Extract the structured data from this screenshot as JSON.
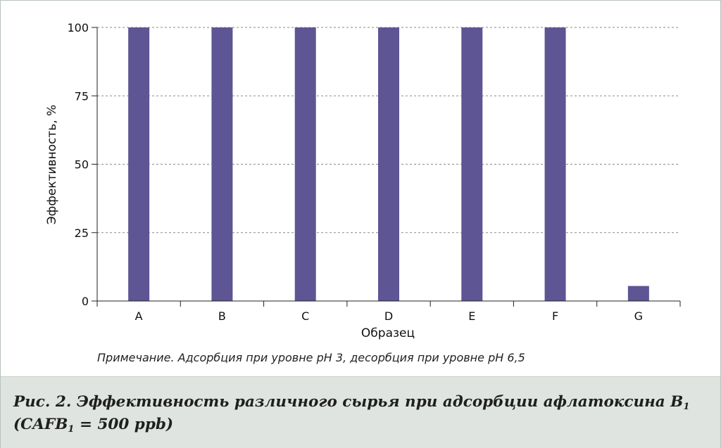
{
  "chart_data": {
    "type": "bar",
    "ylabel": "Эффективность, %",
    "xlabel": "Образец",
    "categories": [
      "A",
      "B",
      "C",
      "D",
      "E",
      "F",
      "G"
    ],
    "values": [
      100,
      100,
      100,
      100,
      100,
      100,
      5.5
    ],
    "ylim": [
      0,
      100
    ],
    "yticks": [
      0,
      25,
      50,
      75,
      100
    ],
    "grid": true,
    "bar_color": "#5e5594"
  },
  "note": "Примечание. Адсорбция при уровне pH 3, десорбция при уровне pH 6,5",
  "caption": {
    "line1_main": "Рис. 2. Эффективность различного сырья при адсорбции афлатоксина B",
    "line1_sub": "1",
    "line2_pre": "(CAFB",
    "line2_sub": "1",
    "line2_post": " = 500 ppb)"
  }
}
